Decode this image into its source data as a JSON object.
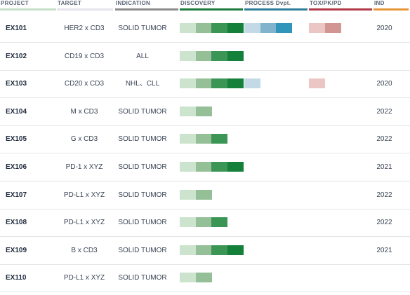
{
  "header": {
    "project": "PROJECT",
    "target": "TARGET",
    "indication": "INDICATION",
    "discovery": "DISCOVERY",
    "process": "PROCESS Dvpt.",
    "tox": "TOX/PK/PD",
    "ind": "IND"
  },
  "colors": {
    "project_header": "#c5dec8",
    "target_header": "#e4e4ec",
    "indication_header": "#8c8c8c",
    "discovery_header": "#1e7a3c",
    "process_header": "#2e7e99",
    "tox_header": "#b03a48",
    "ind_header": "#e8963a"
  },
  "rows": [
    {
      "project": "EX101",
      "target": "HER2 x CD3",
      "indication": "SOLID TUMOR",
      "discovery_stages": 4,
      "process_stages": 3,
      "tox_stages": 2,
      "ind_year": "2020"
    },
    {
      "project": "EX102",
      "target": "CD19 x CD3",
      "indication": "ALL",
      "discovery_stages": 4,
      "process_stages": 0,
      "tox_stages": 0,
      "ind_year": ""
    },
    {
      "project": "EX103",
      "target": "CD20 x CD3",
      "indication": "NHL、CLL",
      "discovery_stages": 4,
      "process_stages": 1,
      "tox_stages": 1,
      "ind_year": "2020"
    },
    {
      "project": "EX104",
      "target": "M x CD3",
      "indication": "SOLID TUMOR",
      "discovery_stages": 2,
      "process_stages": 0,
      "tox_stages": 0,
      "ind_year": "2022"
    },
    {
      "project": "EX105",
      "target": "G x CD3",
      "indication": "SOLID TUMOR",
      "discovery_stages": 3,
      "process_stages": 0,
      "tox_stages": 0,
      "ind_year": "2022"
    },
    {
      "project": "EX106",
      "target": "PD-1 x XYZ",
      "indication": "SOLID TUMOR",
      "discovery_stages": 4,
      "process_stages": 0,
      "tox_stages": 0,
      "ind_year": "2021"
    },
    {
      "project": "EX107",
      "target": "PD-L1 x XYZ",
      "indication": "SOLID TUMOR",
      "discovery_stages": 2,
      "process_stages": 0,
      "tox_stages": 0,
      "ind_year": "2022"
    },
    {
      "project": "EX108",
      "target": "PD-L1 x XYZ",
      "indication": "SOLID TUMOR",
      "discovery_stages": 3,
      "process_stages": 0,
      "tox_stages": 0,
      "ind_year": "2022"
    },
    {
      "project": "EX109",
      "target": "B x CD3",
      "indication": "SOLID TUMOR",
      "discovery_stages": 4,
      "process_stages": 0,
      "tox_stages": 0,
      "ind_year": "2021"
    },
    {
      "project": "EX110",
      "target": "PD-L1 x XYZ",
      "indication": "SOLID TUMOR",
      "discovery_stages": 2,
      "process_stages": 0,
      "tox_stages": 0,
      "ind_year": ""
    }
  ]
}
